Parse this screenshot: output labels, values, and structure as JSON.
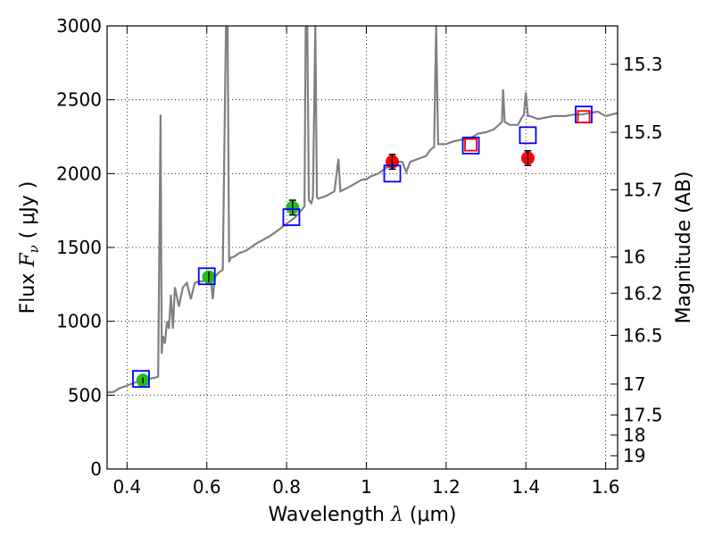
{
  "chart_data": {
    "type": "scatter",
    "title": "",
    "xlabel": {
      "prefix": "Wavelength  ",
      "symbol": "λ",
      "unit": " (μm)"
    },
    "ylabel": {
      "prefix": "Flux  ",
      "symbol": "F",
      "sub": "ν",
      "unit": " ( μJy )"
    },
    "y2label": "Magnitude (AB)",
    "xlim": [
      0.35,
      1.63
    ],
    "ylim": [
      0,
      3000
    ],
    "grid": true,
    "x_ticks": [
      0.4,
      0.6,
      0.8,
      1.0,
      1.2,
      1.4,
      1.6
    ],
    "x_tick_labels": [
      "0.4",
      "0.6",
      "0.8",
      "1",
      "1.2",
      "1.4",
      "1.6"
    ],
    "y_ticks": [
      0,
      500,
      1000,
      1500,
      2000,
      2500,
      3000
    ],
    "y_tick_labels": [
      "0",
      "500",
      "1000",
      "1500",
      "2000",
      "2500",
      "3000"
    ],
    "mag_ticks": [
      {
        "label": "15.3",
        "flux": 2740
      },
      {
        "label": "15.5",
        "flux": 2280
      },
      {
        "label": "15.7",
        "flux": 1890
      },
      {
        "label": "16",
        "flux": 1435
      },
      {
        "label": "16.2",
        "flux": 1190
      },
      {
        "label": "16.5",
        "flux": 905
      },
      {
        "label": "17",
        "flux": 575
      },
      {
        "label": "17.5",
        "flux": 365
      },
      {
        "label": "18",
        "flux": 230
      },
      {
        "label": "19",
        "flux": 90
      }
    ],
    "spectrum": {
      "name": "model spectrum",
      "color": "#808080",
      "points": [
        [
          0.35,
          520
        ],
        [
          0.365,
          520
        ],
        [
          0.38,
          545
        ],
        [
          0.395,
          560
        ],
        [
          0.41,
          575
        ],
        [
          0.425,
          590
        ],
        [
          0.44,
          600
        ],
        [
          0.455,
          610
        ],
        [
          0.47,
          618
        ],
        [
          0.478,
          625
        ],
        [
          0.484,
          2400
        ],
        [
          0.487,
          780
        ],
        [
          0.49,
          900
        ],
        [
          0.495,
          850
        ],
        [
          0.5,
          1000
        ],
        [
          0.505,
          950
        ],
        [
          0.51,
          1180
        ],
        [
          0.515,
          950
        ],
        [
          0.52,
          1230
        ],
        [
          0.53,
          1100
        ],
        [
          0.54,
          1230
        ],
        [
          0.55,
          1260
        ],
        [
          0.56,
          1150
        ],
        [
          0.57,
          1260
        ],
        [
          0.58,
          1270
        ],
        [
          0.59,
          1270
        ],
        [
          0.6,
          1300
        ],
        [
          0.61,
          1300
        ],
        [
          0.615,
          1150
        ],
        [
          0.62,
          1300
        ],
        [
          0.63,
          1330
        ],
        [
          0.64,
          1350
        ],
        [
          0.648,
          3000
        ],
        [
          0.652,
          3000
        ],
        [
          0.656,
          1400
        ],
        [
          0.66,
          1430
        ],
        [
          0.67,
          1440
        ],
        [
          0.68,
          1460
        ],
        [
          0.7,
          1480
        ],
        [
          0.72,
          1520
        ],
        [
          0.74,
          1550
        ],
        [
          0.76,
          1580
        ],
        [
          0.78,
          1620
        ],
        [
          0.8,
          1660
        ],
        [
          0.82,
          1700
        ],
        [
          0.84,
          1760
        ],
        [
          0.845,
          1780
        ],
        [
          0.848,
          3000
        ],
        [
          0.852,
          3000
        ],
        [
          0.856,
          1820
        ],
        [
          0.862,
          1800
        ],
        [
          0.866,
          1840
        ],
        [
          0.872,
          3000
        ],
        [
          0.876,
          1840
        ],
        [
          0.88,
          1830
        ],
        [
          0.9,
          1850
        ],
        [
          0.92,
          1880
        ],
        [
          0.93,
          2100
        ],
        [
          0.935,
          1880
        ],
        [
          0.95,
          1900
        ],
        [
          0.97,
          1930
        ],
        [
          0.99,
          1960
        ],
        [
          1.0,
          1960
        ],
        [
          1.01,
          1980
        ],
        [
          1.03,
          2000
        ],
        [
          1.05,
          2040
        ],
        [
          1.07,
          2060
        ],
        [
          1.08,
          2080
        ],
        [
          1.09,
          2080
        ],
        [
          1.1,
          2010
        ],
        [
          1.11,
          2080
        ],
        [
          1.12,
          2090
        ],
        [
          1.13,
          2100
        ],
        [
          1.15,
          2120
        ],
        [
          1.16,
          2160
        ],
        [
          1.17,
          2180
        ],
        [
          1.175,
          3000
        ],
        [
          1.18,
          2200
        ],
        [
          1.19,
          2200
        ],
        [
          1.2,
          2200
        ],
        [
          1.22,
          2220
        ],
        [
          1.24,
          2230
        ],
        [
          1.26,
          2240
        ],
        [
          1.28,
          2270
        ],
        [
          1.3,
          2280
        ],
        [
          1.32,
          2300
        ],
        [
          1.34,
          2350
        ],
        [
          1.343,
          2570
        ],
        [
          1.347,
          2350
        ],
        [
          1.36,
          2330
        ],
        [
          1.38,
          2330
        ],
        [
          1.39,
          2380
        ],
        [
          1.395,
          2400
        ],
        [
          1.4,
          2550
        ],
        [
          1.405,
          2390
        ],
        [
          1.41,
          2390
        ],
        [
          1.43,
          2370
        ],
        [
          1.45,
          2380
        ],
        [
          1.47,
          2390
        ],
        [
          1.5,
          2390
        ],
        [
          1.52,
          2400
        ],
        [
          1.54,
          2400
        ],
        [
          1.56,
          2410
        ],
        [
          1.58,
          2420
        ],
        [
          1.6,
          2390
        ],
        [
          1.63,
          2410
        ]
      ]
    },
    "series": [
      {
        "name": "observed (green)",
        "color": "#22bb22",
        "x": [
          0.44,
          0.605,
          0.815
        ],
        "y": [
          600,
          1300,
          1770
        ],
        "yerr": [
          20,
          35,
          50
        ]
      },
      {
        "name": "observed (red)",
        "color": "#ff0000",
        "x": [
          1.065,
          1.405
        ],
        "y": [
          2080,
          2105
        ],
        "yerr": [
          50,
          50
        ]
      },
      {
        "name": "model photometry (blue squares)",
        "color": "#0000ff",
        "x": [
          0.435,
          0.6,
          0.812,
          1.065,
          1.262,
          1.405,
          1.545
        ],
        "y": [
          610,
          1305,
          1705,
          2000,
          2190,
          2260,
          2400
        ]
      },
      {
        "name": "model photometry (red squares)",
        "color": "#ff0000",
        "x": [
          1.262,
          1.545
        ],
        "y": [
          2195,
          2385
        ]
      }
    ]
  }
}
